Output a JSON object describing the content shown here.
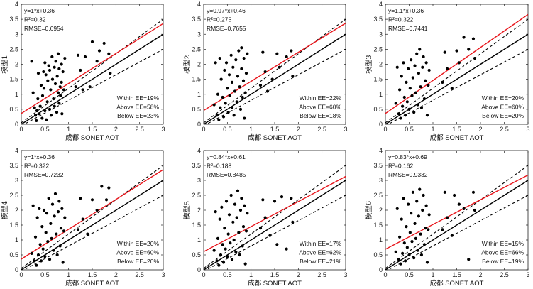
{
  "figure": {
    "background": "#ffffff",
    "ee_line_color": "#000000",
    "fit_line_color": "#e8151b"
  },
  "chart_data": [
    {
      "type": "scatter",
      "ylabel": "模型1",
      "xlabel": "成都 SONET AOT",
      "xlim": [
        0,
        3
      ],
      "ylim": [
        0,
        4
      ],
      "x_ticks": [
        "0",
        "0.5",
        "1",
        "1.5",
        "2",
        "2.5",
        "3"
      ],
      "y_ticks": [
        "0",
        "0.5",
        "1",
        "1.5",
        "2",
        "2.5",
        "3",
        "3.5",
        "4"
      ],
      "fit": {
        "slope": 1.0,
        "intercept": 0.36
      },
      "stats": [
        "y=1*x+0.36",
        "R²=0.32",
        "RMSE=0.6954"
      ],
      "ee": [
        "Within EE=19%",
        "Above EE=58%",
        "Below EE=23%"
      ],
      "points": [
        [
          0.22,
          2.1
        ],
        [
          0.25,
          1.05
        ],
        [
          0.28,
          0.55
        ],
        [
          0.3,
          0.3
        ],
        [
          0.32,
          0.12
        ],
        [
          0.33,
          0.45
        ],
        [
          0.35,
          0.85
        ],
        [
          0.36,
          1.7
        ],
        [
          0.38,
          0.35
        ],
        [
          0.4,
          0.6
        ],
        [
          0.42,
          1.3
        ],
        [
          0.44,
          0.2
        ],
        [
          0.45,
          0.95
        ],
        [
          0.47,
          1.75
        ],
        [
          0.48,
          1.2
        ],
        [
          0.5,
          2.05
        ],
        [
          0.5,
          0.45
        ],
        [
          0.52,
          1.65
        ],
        [
          0.53,
          0.15
        ],
        [
          0.55,
          0.75
        ],
        [
          0.56,
          1.45
        ],
        [
          0.58,
          1.95
        ],
        [
          0.6,
          0.5
        ],
        [
          0.6,
          1.8
        ],
        [
          0.62,
          1.15
        ],
        [
          0.63,
          0.3
        ],
        [
          0.65,
          2.25
        ],
        [
          0.66,
          1.5
        ],
        [
          0.68,
          0.85
        ],
        [
          0.7,
          1.9
        ],
        [
          0.7,
          0.6
        ],
        [
          0.72,
          1.35
        ],
        [
          0.73,
          2.1
        ],
        [
          0.75,
          0.4
        ],
        [
          0.76,
          1.6
        ],
        [
          0.78,
          1.05
        ],
        [
          0.78,
          2.35
        ],
        [
          0.8,
          0.7
        ],
        [
          0.8,
          1.85
        ],
        [
          0.82,
          1.25
        ],
        [
          0.83,
          0.95
        ],
        [
          0.85,
          2.0
        ],
        [
          0.85,
          1.4
        ],
        [
          0.86,
          0.35
        ],
        [
          0.88,
          1.75
        ],
        [
          0.9,
          1.15
        ],
        [
          0.92,
          2.2
        ],
        [
          1.15,
          1.25
        ],
        [
          1.2,
          2.3
        ],
        [
          1.25,
          1.8
        ],
        [
          1.3,
          1.15
        ],
        [
          1.35,
          2.25
        ],
        [
          1.45,
          1.25
        ],
        [
          1.5,
          2.75
        ],
        [
          1.6,
          2.1
        ],
        [
          1.65,
          2.45
        ],
        [
          1.75,
          2.7
        ],
        [
          1.85,
          2.35
        ],
        [
          1.88,
          1.7
        ]
      ]
    },
    {
      "type": "scatter",
      "ylabel": "模型2",
      "xlabel": "成都 SONET AOT",
      "xlim": [
        0,
        3
      ],
      "ylim": [
        0,
        4
      ],
      "x_ticks": [
        "0",
        "0.5",
        "1",
        "1.5",
        "2",
        "2.5",
        "3"
      ],
      "y_ticks": [
        "0",
        "0.5",
        "1",
        "1.5",
        "2",
        "2.5",
        "3",
        "3.5",
        "4"
      ],
      "fit": {
        "slope": 0.97,
        "intercept": 0.46
      },
      "stats": [
        "y=0.97*x+0.46",
        "R²=0.275",
        "RMSE=0.7655"
      ],
      "ee": [
        "Within EE=22%",
        "Above EE=60%",
        "Below EE=18%"
      ],
      "points": [
        [
          0.22,
          0.65
        ],
        [
          0.25,
          2.05
        ],
        [
          0.28,
          0.3
        ],
        [
          0.3,
          1.0
        ],
        [
          0.32,
          0.15
        ],
        [
          0.34,
          2.2
        ],
        [
          0.35,
          0.55
        ],
        [
          0.37,
          1.5
        ],
        [
          0.4,
          0.9
        ],
        [
          0.42,
          0.25
        ],
        [
          0.44,
          1.8
        ],
        [
          0.46,
          0.7
        ],
        [
          0.48,
          2.05
        ],
        [
          0.5,
          1.2
        ],
        [
          0.52,
          0.4
        ],
        [
          0.54,
          1.65
        ],
        [
          0.55,
          0.95
        ],
        [
          0.58,
          2.3
        ],
        [
          0.6,
          0.55
        ],
        [
          0.6,
          1.4
        ],
        [
          0.62,
          1.9
        ],
        [
          0.64,
          0.3
        ],
        [
          0.66,
          1.1
        ],
        [
          0.68,
          2.15
        ],
        [
          0.7,
          0.75
        ],
        [
          0.72,
          1.6
        ],
        [
          0.74,
          2.45
        ],
        [
          0.76,
          1.25
        ],
        [
          0.78,
          0.5
        ],
        [
          0.8,
          1.85
        ],
        [
          0.8,
          2.55
        ],
        [
          0.82,
          0.9
        ],
        [
          0.84,
          1.45
        ],
        [
          0.85,
          2.2
        ],
        [
          0.86,
          0.2
        ],
        [
          0.88,
          1.05
        ],
        [
          0.9,
          1.7
        ],
        [
          0.92,
          2.35
        ],
        [
          1.2,
          1.3
        ],
        [
          1.25,
          2.4
        ],
        [
          1.3,
          1.75
        ],
        [
          1.35,
          1.1
        ],
        [
          1.45,
          1.5
        ],
        [
          1.55,
          2.35
        ],
        [
          1.6,
          1.9
        ],
        [
          1.75,
          2.25
        ],
        [
          1.85,
          2.45
        ],
        [
          1.88,
          1.6
        ]
      ]
    },
    {
      "type": "scatter",
      "ylabel": "模型3",
      "xlabel": "成都 SONET AOT",
      "xlim": [
        0,
        3
      ],
      "ylim": [
        0,
        4
      ],
      "x_ticks": [
        "0",
        "0.5",
        "1",
        "1.5",
        "2",
        "2.5",
        "3"
      ],
      "y_ticks": [
        "0",
        "0.5",
        "1",
        "1.5",
        "2",
        "2.5",
        "3",
        "3.5",
        "4"
      ],
      "fit": {
        "slope": 1.1,
        "intercept": 0.36
      },
      "stats": [
        "y=1.1*x+0.36",
        "R²=0.322",
        "RMSE=0.7441"
      ],
      "ee": [
        "Within EE=20%",
        "Above EE=60%",
        "Below EE=20%"
      ],
      "points": [
        [
          0.22,
          0.7
        ],
        [
          0.25,
          1.9
        ],
        [
          0.28,
          0.35
        ],
        [
          0.3,
          1.15
        ],
        [
          0.32,
          0.2
        ],
        [
          0.34,
          1.6
        ],
        [
          0.36,
          0.6
        ],
        [
          0.38,
          2.05
        ],
        [
          0.4,
          0.9
        ],
        [
          0.42,
          0.3
        ],
        [
          0.44,
          1.4
        ],
        [
          0.46,
          0.75
        ],
        [
          0.48,
          1.85
        ],
        [
          0.5,
          0.5
        ],
        [
          0.52,
          1.2
        ],
        [
          0.54,
          2.15
        ],
        [
          0.56,
          0.95
        ],
        [
          0.58,
          1.55
        ],
        [
          0.6,
          0.4
        ],
        [
          0.62,
          1.95
        ],
        [
          0.64,
          1.05
        ],
        [
          0.66,
          2.35
        ],
        [
          0.68,
          0.65
        ],
        [
          0.7,
          1.7
        ],
        [
          0.72,
          2.5
        ],
        [
          0.74,
          1.25
        ],
        [
          0.76,
          0.55
        ],
        [
          0.78,
          1.9
        ],
        [
          0.8,
          2.25
        ],
        [
          0.82,
          0.85
        ],
        [
          0.84,
          1.45
        ],
        [
          0.86,
          2.05
        ],
        [
          0.88,
          0.3
        ],
        [
          0.9,
          1.3
        ],
        [
          0.92,
          1.8
        ],
        [
          1.2,
          1.4
        ],
        [
          1.25,
          2.4
        ],
        [
          1.3,
          1.85
        ],
        [
          1.4,
          1.2
        ],
        [
          1.5,
          2.45
        ],
        [
          1.55,
          2.05
        ],
        [
          1.65,
          2.9
        ],
        [
          1.75,
          2.5
        ],
        [
          1.85,
          2.85
        ],
        [
          1.88,
          2.2
        ]
      ]
    },
    {
      "type": "scatter",
      "ylabel": "模型4",
      "xlabel": "成都 SONET AOT",
      "xlim": [
        0,
        3
      ],
      "ylim": [
        0,
        4
      ],
      "x_ticks": [
        "0",
        "0.5",
        "1",
        "1.5",
        "2",
        "2.5",
        "3"
      ],
      "y_ticks": [
        "0",
        "0.5",
        "1",
        "1.5",
        "2",
        "2.5",
        "3",
        "3.5",
        "4"
      ],
      "fit": {
        "slope": 1.0,
        "intercept": 0.36
      },
      "stats": [
        "y=1*x+0.36",
        "R²=0.322",
        "RMSE=0.7232"
      ],
      "ee": [
        "Within EE=20%",
        "Above EE=60%",
        "Below EE=20%"
      ],
      "points": [
        [
          0.22,
          0.55
        ],
        [
          0.25,
          2.15
        ],
        [
          0.28,
          0.3
        ],
        [
          0.3,
          1.1
        ],
        [
          0.32,
          0.15
        ],
        [
          0.34,
          1.75
        ],
        [
          0.36,
          0.5
        ],
        [
          0.38,
          2.05
        ],
        [
          0.4,
          0.85
        ],
        [
          0.42,
          0.3
        ],
        [
          0.44,
          1.45
        ],
        [
          0.46,
          0.7
        ],
        [
          0.48,
          2.0
        ],
        [
          0.5,
          0.45
        ],
        [
          0.52,
          1.25
        ],
        [
          0.54,
          1.9
        ],
        [
          0.56,
          0.95
        ],
        [
          0.58,
          2.4
        ],
        [
          0.6,
          0.35
        ],
        [
          0.62,
          1.55
        ],
        [
          0.64,
          1.05
        ],
        [
          0.66,
          2.2
        ],
        [
          0.68,
          0.65
        ],
        [
          0.7,
          1.8
        ],
        [
          0.72,
          2.55
        ],
        [
          0.74,
          1.2
        ],
        [
          0.76,
          0.5
        ],
        [
          0.78,
          1.95
        ],
        [
          0.8,
          2.3
        ],
        [
          0.82,
          0.8
        ],
        [
          0.84,
          1.4
        ],
        [
          0.86,
          2.05
        ],
        [
          0.88,
          0.25
        ],
        [
          0.9,
          1.3
        ],
        [
          0.92,
          1.75
        ],
        [
          1.2,
          1.35
        ],
        [
          1.25,
          2.4
        ],
        [
          1.3,
          1.7
        ],
        [
          1.4,
          1.2
        ],
        [
          1.5,
          2.35
        ],
        [
          1.6,
          2.0
        ],
        [
          1.7,
          2.8
        ],
        [
          1.8,
          2.35
        ],
        [
          1.85,
          2.75
        ]
      ]
    },
    {
      "type": "scatter",
      "ylabel": "模型5",
      "xlabel": "成都 SONET AOT",
      "xlim": [
        0,
        3
      ],
      "ylim": [
        0,
        4
      ],
      "x_ticks": [
        "0",
        "0.5",
        "1",
        "1.5",
        "2",
        "2.5",
        "3"
      ],
      "y_ticks": [
        "0",
        "0.5",
        "1",
        "1.5",
        "2",
        "2.5",
        "3",
        "3.5",
        "4"
      ],
      "fit": {
        "slope": 0.84,
        "intercept": 0.61
      },
      "stats": [
        "y=0.84*x+0.61",
        "R²=0.188",
        "RMSE=0.8485"
      ],
      "ee": [
        "Within EE=17%",
        "Above EE=62%",
        "Below EE=21%"
      ],
      "points": [
        [
          0.22,
          0.65
        ],
        [
          0.25,
          1.95
        ],
        [
          0.28,
          0.3
        ],
        [
          0.3,
          1.05
        ],
        [
          0.32,
          0.15
        ],
        [
          0.34,
          1.7
        ],
        [
          0.36,
          0.5
        ],
        [
          0.38,
          2.1
        ],
        [
          0.4,
          0.85
        ],
        [
          0.42,
          0.25
        ],
        [
          0.44,
          1.4
        ],
        [
          0.46,
          0.7
        ],
        [
          0.48,
          2.3
        ],
        [
          0.5,
          0.45
        ],
        [
          0.52,
          1.2
        ],
        [
          0.54,
          1.85
        ],
        [
          0.56,
          0.9
        ],
        [
          0.58,
          2.5
        ],
        [
          0.6,
          0.35
        ],
        [
          0.62,
          1.6
        ],
        [
          0.64,
          1.0
        ],
        [
          0.66,
          2.2
        ],
        [
          0.68,
          0.6
        ],
        [
          0.7,
          1.75
        ],
        [
          0.72,
          2.65
        ],
        [
          0.74,
          1.25
        ],
        [
          0.76,
          0.5
        ],
        [
          0.78,
          2.0
        ],
        [
          0.8,
          2.4
        ],
        [
          0.82,
          0.8
        ],
        [
          0.84,
          1.45
        ],
        [
          0.86,
          2.15
        ],
        [
          0.88,
          0.2
        ],
        [
          0.9,
          1.3
        ],
        [
          0.92,
          1.9
        ],
        [
          1.2,
          1.4
        ],
        [
          1.25,
          2.35
        ],
        [
          1.3,
          1.75
        ],
        [
          1.4,
          1.15
        ],
        [
          1.5,
          2.3
        ],
        [
          1.55,
          0.85
        ],
        [
          1.65,
          2.45
        ],
        [
          1.75,
          0.7
        ],
        [
          1.85,
          2.4
        ],
        [
          1.88,
          1.6
        ]
      ]
    },
    {
      "type": "scatter",
      "ylabel": "模型6",
      "xlabel": "成都 SONET AOT",
      "xlim": [
        0,
        3
      ],
      "ylim": [
        0,
        4
      ],
      "x_ticks": [
        "0",
        "0.5",
        "1",
        "1.5",
        "2",
        "2.5",
        "3"
      ],
      "y_ticks": [
        "0",
        "0.5",
        "1",
        "1.5",
        "2",
        "2.5",
        "3",
        "3.5",
        "4"
      ],
      "fit": {
        "slope": 0.83,
        "intercept": 0.69
      },
      "stats": [
        "y=0.83*x+0.69",
        "R²=0.162",
        "RMSE=0.9332"
      ],
      "ee": [
        "Within EE=15%",
        "Above EE=66%",
        "Below EE=19%"
      ],
      "points": [
        [
          0.22,
          0.6
        ],
        [
          0.25,
          2.05
        ],
        [
          0.28,
          0.35
        ],
        [
          0.3,
          1.1
        ],
        [
          0.32,
          0.2
        ],
        [
          0.34,
          1.7
        ],
        [
          0.36,
          0.55
        ],
        [
          0.38,
          2.4
        ],
        [
          0.4,
          0.9
        ],
        [
          0.42,
          0.3
        ],
        [
          0.44,
          1.45
        ],
        [
          0.46,
          0.75
        ],
        [
          0.48,
          2.2
        ],
        [
          0.5,
          0.5
        ],
        [
          0.52,
          1.25
        ],
        [
          0.54,
          1.9
        ],
        [
          0.56,
          0.95
        ],
        [
          0.58,
          2.6
        ],
        [
          0.6,
          0.4
        ],
        [
          0.62,
          1.55
        ],
        [
          0.64,
          1.05
        ],
        [
          0.66,
          2.3
        ],
        [
          0.68,
          0.65
        ],
        [
          0.7,
          1.8
        ],
        [
          0.72,
          2.7
        ],
        [
          0.74,
          1.2
        ],
        [
          0.76,
          0.5
        ],
        [
          0.78,
          2.0
        ],
        [
          0.8,
          2.5
        ],
        [
          0.82,
          0.85
        ],
        [
          0.84,
          1.4
        ],
        [
          0.86,
          2.15
        ],
        [
          0.88,
          0.25
        ],
        [
          0.9,
          1.35
        ],
        [
          0.92,
          1.85
        ],
        [
          1.2,
          1.35
        ],
        [
          1.25,
          2.6
        ],
        [
          1.3,
          1.75
        ],
        [
          1.4,
          1.15
        ],
        [
          1.45,
          2.5
        ],
        [
          1.55,
          2.2
        ],
        [
          1.65,
          2.05
        ],
        [
          1.75,
          0.35
        ],
        [
          1.85,
          2.6
        ],
        [
          1.88,
          2.0
        ]
      ]
    }
  ]
}
